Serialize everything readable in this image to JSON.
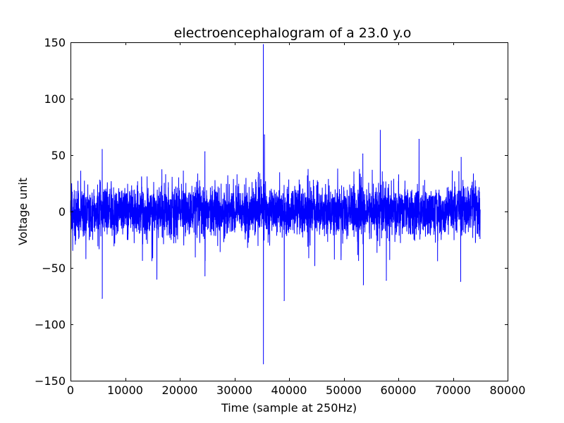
{
  "chart_data": {
    "type": "line",
    "title": "electroencephalogram of a 23.0 y.o",
    "xlabel": "Time (sample at 250Hz)",
    "ylabel": "Voltage unit",
    "xlim": [
      0,
      80000
    ],
    "ylim": [
      -150,
      150
    ],
    "xticks": [
      0,
      10000,
      20000,
      30000,
      40000,
      50000,
      60000,
      70000,
      80000
    ],
    "xtick_labels": [
      "0",
      "10000",
      "20000",
      "30000",
      "40000",
      "50000",
      "60000",
      "70000",
      "80000"
    ],
    "yticks": [
      -150,
      -100,
      -50,
      0,
      50,
      100,
      150
    ],
    "ytick_labels": [
      "−150",
      "−100",
      "−50",
      "0",
      "50",
      "100",
      "150"
    ],
    "grid": false,
    "series": [
      {
        "color": "#0000ff",
        "sample_count": 75000,
        "x_start": 0,
        "x_end": 75000,
        "typical_range": [
          -35,
          30
        ],
        "notable_points": [
          {
            "x": 5800,
            "y": 55
          },
          {
            "x": 5800,
            "y": -77
          },
          {
            "x": 15800,
            "y": -60
          },
          {
            "x": 24600,
            "y": 53
          },
          {
            "x": 24600,
            "y": -57
          },
          {
            "x": 35300,
            "y": 148
          },
          {
            "x": 35300,
            "y": -135
          },
          {
            "x": 35500,
            "y": 68
          },
          {
            "x": 39100,
            "y": -79
          },
          {
            "x": 44700,
            "y": -48
          },
          {
            "x": 53500,
            "y": 51
          },
          {
            "x": 53600,
            "y": -65
          },
          {
            "x": 56700,
            "y": 72
          },
          {
            "x": 57800,
            "y": -61
          },
          {
            "x": 63800,
            "y": 64
          },
          {
            "x": 71400,
            "y": -62
          },
          {
            "x": 71500,
            "y": 48
          }
        ]
      }
    ]
  }
}
